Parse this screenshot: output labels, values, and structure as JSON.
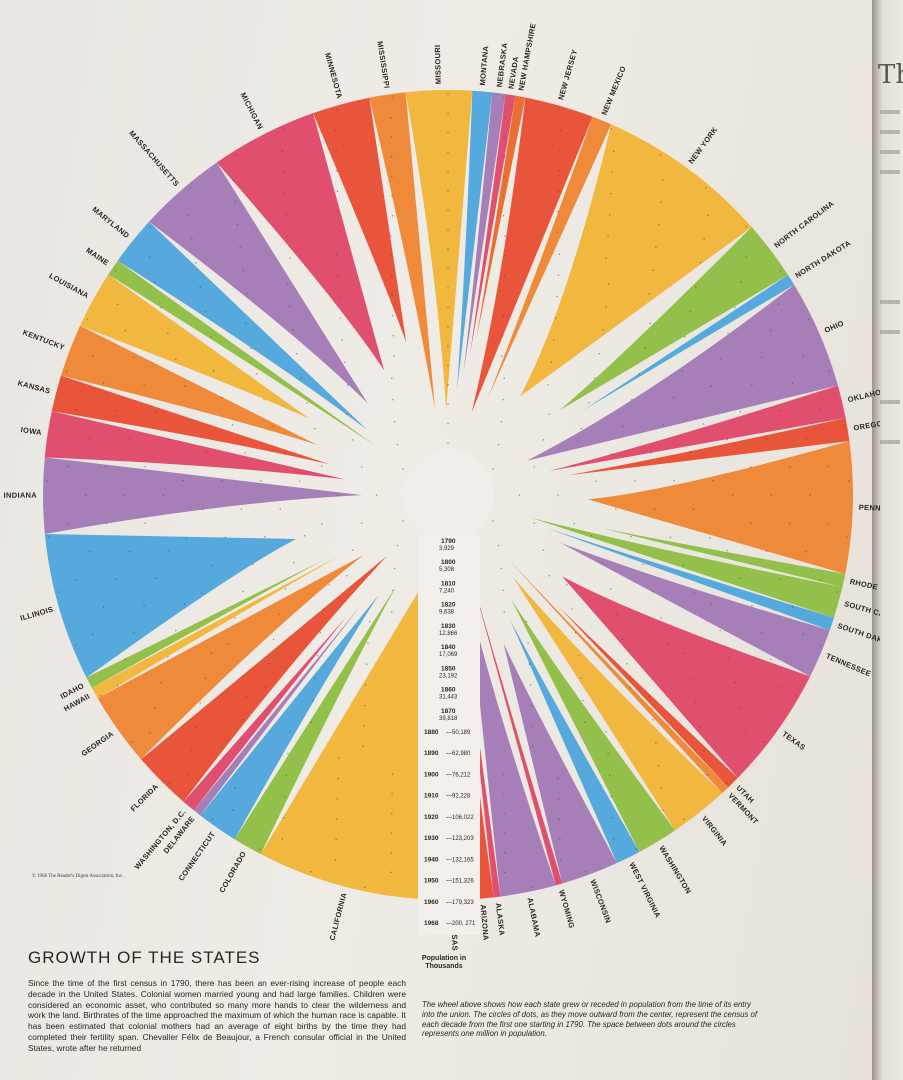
{
  "page": {
    "title": "GROWTH OF THE STATES",
    "copyright": "© 1968 The Reader's Digest Association, Inc.",
    "body_text": "Since the time of the first census in 1790, there has been an ever-rising increase of people each decade in the United States. Colonial women married young and had large families. Children were considered an economic asset, who contributed so many more hands to clear the wilderness and work the land. Birthrates of the time approached the maximum of which the human race is capable. It has been estimated that colonial mothers had an average of eight births by the time they had completed their fertility span. Chevalier Félix de Beaujour, a French consular official in the United States, wrote after he returned",
    "caption": "The wheel above shows how each state grew or receded in population from the time of its entry into the union. The circles of dots, as they move outward from the center, represent the census of each decade from the first one starting in 1790. The space between dots around the circles represents one million in population.",
    "scale_label": "Population in Thousands",
    "right_page_letter": "Th"
  },
  "chart_data": {
    "type": "radial-area",
    "title": "GROWTH OF THE STATES",
    "scale_title": "Population in Thousands",
    "census": [
      {
        "year": "1790",
        "pop": "3,929"
      },
      {
        "year": "1800",
        "pop": "5,308"
      },
      {
        "year": "1810",
        "pop": "7,240"
      },
      {
        "year": "1820",
        "pop": "9,638"
      },
      {
        "year": "1830",
        "pop": "12,866"
      },
      {
        "year": "1840",
        "pop": "17,069"
      },
      {
        "year": "1850",
        "pop": "23,192"
      },
      {
        "year": "1860",
        "pop": "31,443"
      },
      {
        "year": "1870",
        "pop": "39,818"
      },
      {
        "year": "1880",
        "pop": "50,189"
      },
      {
        "year": "1890",
        "pop": "62,980"
      },
      {
        "year": "1900",
        "pop": "76,212"
      },
      {
        "year": "1910",
        "pop": "92,228"
      },
      {
        "year": "1920",
        "pop": "106,022"
      },
      {
        "year": "1930",
        "pop": "123,203"
      },
      {
        "year": "1940",
        "pop": "132,165"
      },
      {
        "year": "1950",
        "pop": "151,326"
      },
      {
        "year": "1960",
        "pop": "179,323"
      },
      {
        "year": "1968",
        "pop": "200, 271"
      }
    ],
    "states": [
      {
        "name": "MISSOURI",
        "color": "#f2b73e",
        "wedge": 4.0
      },
      {
        "name": "MONTANA",
        "color": "#55a9dc",
        "wedge": 1.2
      },
      {
        "name": "NEBRASKA",
        "color": "#a77fb8",
        "wedge": 0.8
      },
      {
        "name": "NEVADA",
        "color": "#e14f6e",
        "wedge": 0.6
      },
      {
        "name": "NEW HAMPSHIRE",
        "color": "#ea6f33",
        "wedge": 0.6
      },
      {
        "name": "NEW JERSEY",
        "color": "#e8553a",
        "wedge": 4.2
      },
      {
        "name": "NEW MEXICO",
        "color": "#ef8a3a",
        "wedge": 1.2
      },
      {
        "name": "NEW YORK",
        "color": "#f2b73e",
        "wedge": 10.5
      },
      {
        "name": "NORTH CAROLINA",
        "color": "#93c04a",
        "wedge": 3.6
      },
      {
        "name": "NORTH DAKOTA",
        "color": "#55a9dc",
        "wedge": 0.7
      },
      {
        "name": "OHIO",
        "color": "#a77fb8",
        "wedge": 6.6
      },
      {
        "name": "OKLAHOMA",
        "color": "#e14f6e",
        "wedge": 2.0
      },
      {
        "name": "OREGON",
        "color": "#e8553a",
        "wedge": 1.4
      },
      {
        "name": "PENNSYLVANIA",
        "color": "#ef8a3a",
        "wedge": 8.0
      },
      {
        "name": "RHODE ISLAND",
        "color": "#93c04a",
        "wedge": 0.8
      },
      {
        "name": "SOUTH CAROLINA",
        "color": "#93c04a",
        "wedge": 1.9
      },
      {
        "name": "SOUTH DAKOTA",
        "color": "#55a9dc",
        "wedge": 0.8
      },
      {
        "name": "TENNESSEE",
        "color": "#a77fb8",
        "wedge": 3.0
      },
      {
        "name": "TEXAS",
        "color": "#e14f6e",
        "wedge": 7.5
      },
      {
        "name": "UTAH",
        "color": "#e8553a",
        "wedge": 0.8
      },
      {
        "name": "VERMONT",
        "color": "#ef8a3a",
        "wedge": 0.5
      },
      {
        "name": "VIRGINIA",
        "color": "#f2b73e",
        "wedge": 3.6
      },
      {
        "name": "WASHINGTON",
        "color": "#93c04a",
        "wedge": 2.5
      },
      {
        "name": "WEST VIRGINIA",
        "color": "#55a9dc",
        "wedge": 1.5
      },
      {
        "name": "WISCONSIN",
        "color": "#a77fb8",
        "wedge": 3.5
      },
      {
        "name": "WYOMING",
        "color": "#e14f6e",
        "wedge": 0.4
      },
      {
        "name": "ALABAMA",
        "color": "#a77fb8",
        "wedge": 3.4
      },
      {
        "name": "ALASKA",
        "color": "#e14f6e",
        "wedge": 0.4
      },
      {
        "name": "ARIZONA",
        "color": "#e8553a",
        "wedge": 1.4
      },
      {
        "name": "ARKANSAS",
        "color": "#ef8a3a",
        "wedge": 2.0
      },
      {
        "name": "CALIFORNIA",
        "color": "#f2b73e",
        "wedge": 11.0
      },
      {
        "name": "COLORADO",
        "color": "#93c04a",
        "wedge": 1.8
      },
      {
        "name": "CONNECTICUT",
        "color": "#55a9dc",
        "wedge": 2.5
      },
      {
        "name": "DELAWARE",
        "color": "#a77fb8",
        "wedge": 0.5
      },
      {
        "name": "WASHINGTON, D.C.",
        "color": "#e14f6e",
        "wedge": 0.8
      },
      {
        "name": "FLORIDA",
        "color": "#e8553a",
        "wedge": 3.6
      },
      {
        "name": "GEORGIA",
        "color": "#ef8a3a",
        "wedge": 4.5
      },
      {
        "name": "HAWAII",
        "color": "#f2b73e",
        "wedge": 0.7
      },
      {
        "name": "IDAHO",
        "color": "#93c04a",
        "wedge": 0.7
      },
      {
        "name": "ILLINOIS",
        "color": "#55a9dc",
        "wedge": 9.0
      },
      {
        "name": "INDIANA",
        "color": "#a77fb8",
        "wedge": 4.6
      },
      {
        "name": "IOWA",
        "color": "#e14f6e",
        "wedge": 2.8
      },
      {
        "name": "KANSAS",
        "color": "#e8553a",
        "wedge": 2.2
      },
      {
        "name": "KENTUCKY",
        "color": "#ef8a3a",
        "wedge": 3.2
      },
      {
        "name": "LOUISIANA",
        "color": "#f2b73e",
        "wedge": 3.5
      },
      {
        "name": "MAINE",
        "color": "#93c04a",
        "wedge": 1.0
      },
      {
        "name": "MARYLAND",
        "color": "#55a9dc",
        "wedge": 3.0
      },
      {
        "name": "MASSACHUSETTS",
        "color": "#a77fb8",
        "wedge": 5.4
      },
      {
        "name": "MICHIGAN",
        "color": "#e14f6e",
        "wedge": 6.5
      },
      {
        "name": "MINNESOTA",
        "color": "#e8553a",
        "wedge": 3.5
      },
      {
        "name": "MISSISSIPPI",
        "color": "#ef8a3a",
        "wedge": 2.2
      }
    ]
  }
}
